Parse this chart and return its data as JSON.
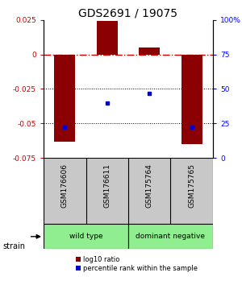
{
  "title": "GDS2691 / 19075",
  "samples": [
    "GSM176606",
    "GSM176611",
    "GSM175764",
    "GSM175765"
  ],
  "log10_ratio": [
    -0.063,
    0.024,
    0.005,
    -0.065
  ],
  "percentile_rank": [
    22,
    40,
    47,
    22
  ],
  "ylim_left": [
    -0.075,
    0.025
  ],
  "ylim_right": [
    0,
    100
  ],
  "yticks_left": [
    -0.075,
    -0.05,
    -0.025,
    0,
    0.025
  ],
  "yticks_right": [
    0,
    25,
    50,
    75,
    100
  ],
  "bar_color": "#8B0000",
  "dot_color": "#0000CC",
  "bar_width": 0.5,
  "hline_color": "#CC0000",
  "dotted_line_color": "black",
  "background_color": "white",
  "title_fontsize": 10,
  "strain_label": "strain",
  "legend_red": "log10 ratio",
  "legend_blue": "percentile rank within the sample",
  "group_labels": [
    "wild type",
    "dominant negative"
  ],
  "group_color": "#90EE90",
  "sample_bg": "#C8C8C8"
}
